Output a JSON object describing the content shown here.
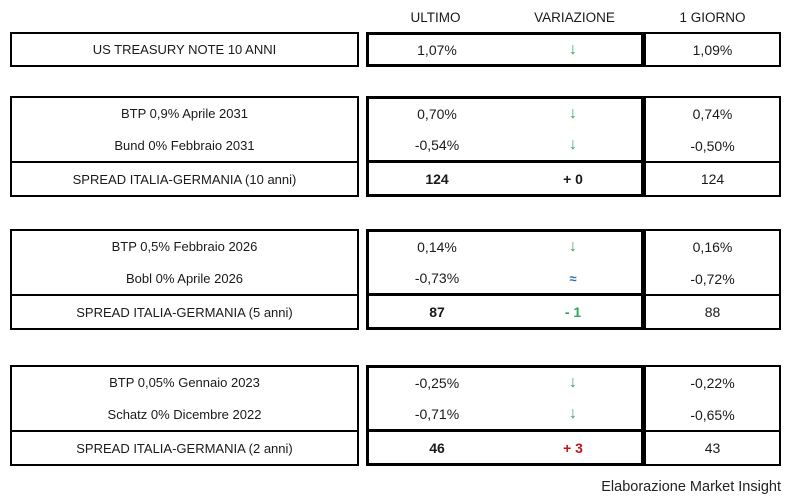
{
  "header": {
    "col_ultimo": "ULTIMO",
    "col_variazione": "VARIAZIONE",
    "col_giorno": "1 GIORNO"
  },
  "colors": {
    "down_green": "#2FA65F",
    "flat_blue": "#2E74B5",
    "up_red": "#CC1414",
    "neutral_black": "#1a1a1a",
    "border": "#000000"
  },
  "blocks": [
    {
      "rows": [
        {
          "label": "US TREASURY NOTE 10 ANNI",
          "ultimo": "1,07%",
          "variazione": "↓",
          "var_color": "green",
          "giorno": "1,09%"
        }
      ]
    },
    {
      "rows": [
        {
          "label": "BTP 0,9% Aprile 2031",
          "ultimo": "0,70%",
          "variazione": "↓",
          "var_color": "green",
          "giorno": "0,74%"
        },
        {
          "label": "Bund 0% Febbraio 2031",
          "ultimo": "-0,54%",
          "variazione": "↓",
          "var_color": "green",
          "giorno": "-0,50%"
        },
        {
          "label": "SPREAD ITALIA-GERMANIA (10 anni)",
          "ultimo": "124",
          "variazione": "+ 0",
          "var_color": "black",
          "giorno": "124"
        }
      ]
    },
    {
      "rows": [
        {
          "label": "BTP 0,5% Febbraio 2026",
          "ultimo": "0,14%",
          "variazione": "↓",
          "var_color": "green",
          "giorno": "0,16%"
        },
        {
          "label": "Bobl 0% Aprile 2026",
          "ultimo": "-0,73%",
          "variazione": "≈",
          "var_color": "blue",
          "giorno": "-0,72%"
        },
        {
          "label": "SPREAD ITALIA-GERMANIA (5 anni)",
          "ultimo": "87",
          "variazione": "- 1",
          "var_color": "green",
          "giorno": "88"
        }
      ]
    },
    {
      "rows": [
        {
          "label": "BTP 0,05% Gennaio 2023",
          "ultimo": "-0,25%",
          "variazione": "↓",
          "var_color": "green",
          "giorno": "-0,22%"
        },
        {
          "label": "Schatz 0% Dicembre 2022",
          "ultimo": "-0,71%",
          "variazione": "↓",
          "var_color": "green",
          "giorno": "-0,65%"
        },
        {
          "label": "SPREAD ITALIA-GERMANIA (2 anni)",
          "ultimo": "46",
          "variazione": "+ 3",
          "var_color": "red",
          "giorno": "43"
        }
      ]
    }
  ],
  "footer": "Elaborazione Market Insight",
  "chart_data": {
    "type": "table",
    "columns": [
      "",
      "ULTIMO",
      "VARIAZIONE",
      "1 GIORNO"
    ],
    "rows": [
      [
        "US TREASURY NOTE 10 ANNI",
        "1,07%",
        "↓",
        "1,09%"
      ],
      [
        "BTP 0,9% Aprile 2031",
        "0,70%",
        "↓",
        "0,74%"
      ],
      [
        "Bund 0% Febbraio 2031",
        "-0,54%",
        "↓",
        "-0,50%"
      ],
      [
        "SPREAD ITALIA-GERMANIA (10 anni)",
        "124",
        "+ 0",
        "124"
      ],
      [
        "BTP 0,5% Febbraio 2026",
        "0,14%",
        "↓",
        "0,16%"
      ],
      [
        "Bobl 0% Aprile 2026",
        "-0,73%",
        "≈",
        "-0,72%"
      ],
      [
        "SPREAD ITALIA-GERMANIA (5 anni)",
        "87",
        "- 1",
        "88"
      ],
      [
        "BTP 0,05% Gennaio 2023",
        "-0,25%",
        "↓",
        "-0,22%"
      ],
      [
        "Schatz 0% Dicembre 2022",
        "-0,71%",
        "↓",
        "-0,65%"
      ],
      [
        "SPREAD ITALIA-GERMANIA (2 anni)",
        "46",
        "+ 3",
        "43"
      ]
    ],
    "title": "",
    "footnote": "Elaborazione Market Insight"
  }
}
